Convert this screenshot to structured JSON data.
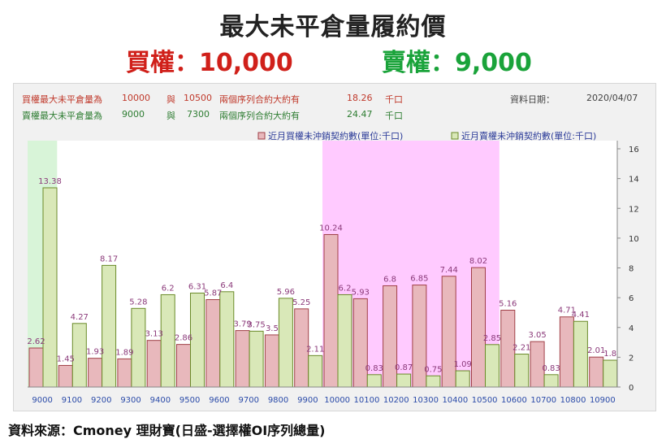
{
  "header": {
    "title": "最大未平倉量履約價",
    "call_label": "買權：10,000",
    "put_label": "賣權：9,000"
  },
  "info": {
    "call_row": {
      "prefix": "買權最大未平倉量為",
      "strike1": "10000",
      "connector": "與",
      "strike2": "10500",
      "text": "兩個序列合約大約有",
      "amount": "18.26",
      "unit": "千口"
    },
    "put_row": {
      "prefix": "賣權最大未平倉量為",
      "strike1": "9000",
      "connector": "與",
      "strike2": "7300",
      "text": "兩個序列合約大約有",
      "amount": "24.47",
      "unit": "千口"
    },
    "date_label": "資料日期：",
    "date_value": "2020/04/07"
  },
  "source": "資料來源：Cmoney 理財寶(日盛-選擇權OI序列總量)",
  "colors": {
    "call_fill": "#e8b8bc",
    "call_stroke": "#a04048",
    "put_fill": "#d9e8b8",
    "put_stroke": "#6a8a28",
    "label_color": "#8b3a7a",
    "axis_label_color": "#2a4aa8",
    "put_highlight": "#c8f0c8",
    "call_highlight": "#ffb8ff"
  },
  "chart_data": {
    "type": "bar",
    "categories": [
      "9000",
      "9100",
      "9200",
      "9300",
      "9400",
      "9500",
      "9600",
      "9700",
      "9800",
      "9900",
      "10000",
      "10100",
      "10200",
      "10300",
      "10400",
      "10500",
      "10600",
      "10700",
      "10800",
      "10900"
    ],
    "series": [
      {
        "name": "近月買權未沖銷契約數(單位:千口)",
        "values": [
          2.62,
          1.45,
          1.93,
          1.89,
          3.13,
          2.86,
          5.87,
          3.79,
          3.5,
          5.25,
          10.24,
          5.93,
          6.8,
          6.85,
          7.44,
          8.02,
          5.16,
          3.05,
          4.71,
          2.01
        ]
      },
      {
        "name": "近月賣權未沖銷契約數(單位:千口)",
        "values": [
          13.38,
          4.27,
          8.17,
          5.28,
          6.2,
          6.31,
          6.4,
          3.75,
          5.96,
          2.11,
          6.2,
          0.83,
          0.87,
          0.75,
          1.09,
          2.85,
          2.21,
          0.83,
          4.41,
          1.8
        ]
      }
    ],
    "ylim": [
      0,
      16
    ],
    "yticks": [
      "0",
      "2",
      "4",
      "6",
      "8",
      "10",
      "12",
      "14",
      "16"
    ],
    "highlight_ranges": [
      {
        "series": "put",
        "from": "9000",
        "to": "9000"
      },
      {
        "series": "call",
        "from": "10000",
        "to": "10500"
      }
    ],
    "legend_position": "top",
    "grid": false
  }
}
